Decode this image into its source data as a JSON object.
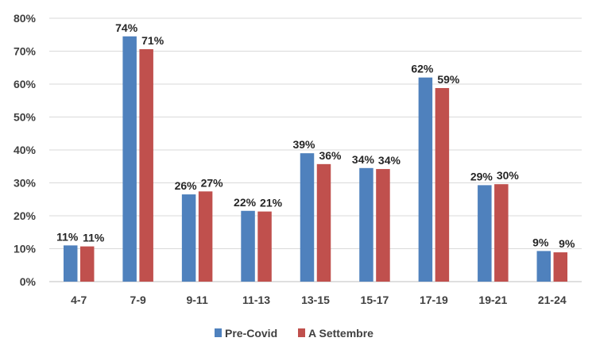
{
  "chart_data": {
    "type": "bar",
    "title": "",
    "xlabel": "",
    "ylabel": "",
    "categories": [
      "4-7",
      "7-9",
      "9-11",
      "11-13",
      "13-15",
      "15-17",
      "17-19",
      "19-21",
      "21-24"
    ],
    "series": [
      {
        "name": "Pre-Covid",
        "color": "#4f81bd",
        "values": [
          11,
          74.5,
          26.5,
          21.5,
          39,
          34.5,
          62,
          29.3,
          9.3
        ],
        "labels": [
          "11%",
          "74%",
          "26%",
          "22%",
          "39%",
          "34%",
          "62%",
          "29%",
          "9%"
        ]
      },
      {
        "name": "A Settembre",
        "color": "#c0504d",
        "values": [
          10.7,
          70.6,
          27.4,
          21.3,
          35.7,
          34.2,
          58.8,
          29.6,
          8.9
        ],
        "labels": [
          "11%",
          "71%",
          "27%",
          "21%",
          "36%",
          "34%",
          "59%",
          "30%",
          "9%"
        ]
      }
    ],
    "ylim": [
      0,
      80
    ],
    "yticks": [
      "0%",
      "10%",
      "20%",
      "30%",
      "40%",
      "50%",
      "60%",
      "70%",
      "80%"
    ],
    "grid": true,
    "legend_position": "bottom"
  }
}
